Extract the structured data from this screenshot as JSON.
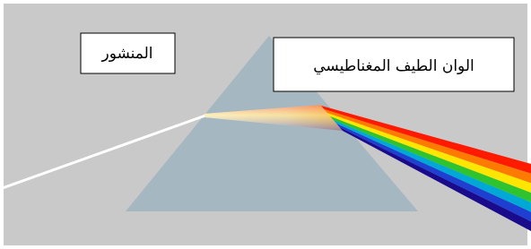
{
  "labels": {
    "prism": "المنشور",
    "spectrum": "الوان الطيف المغناطيسي"
  }
}
